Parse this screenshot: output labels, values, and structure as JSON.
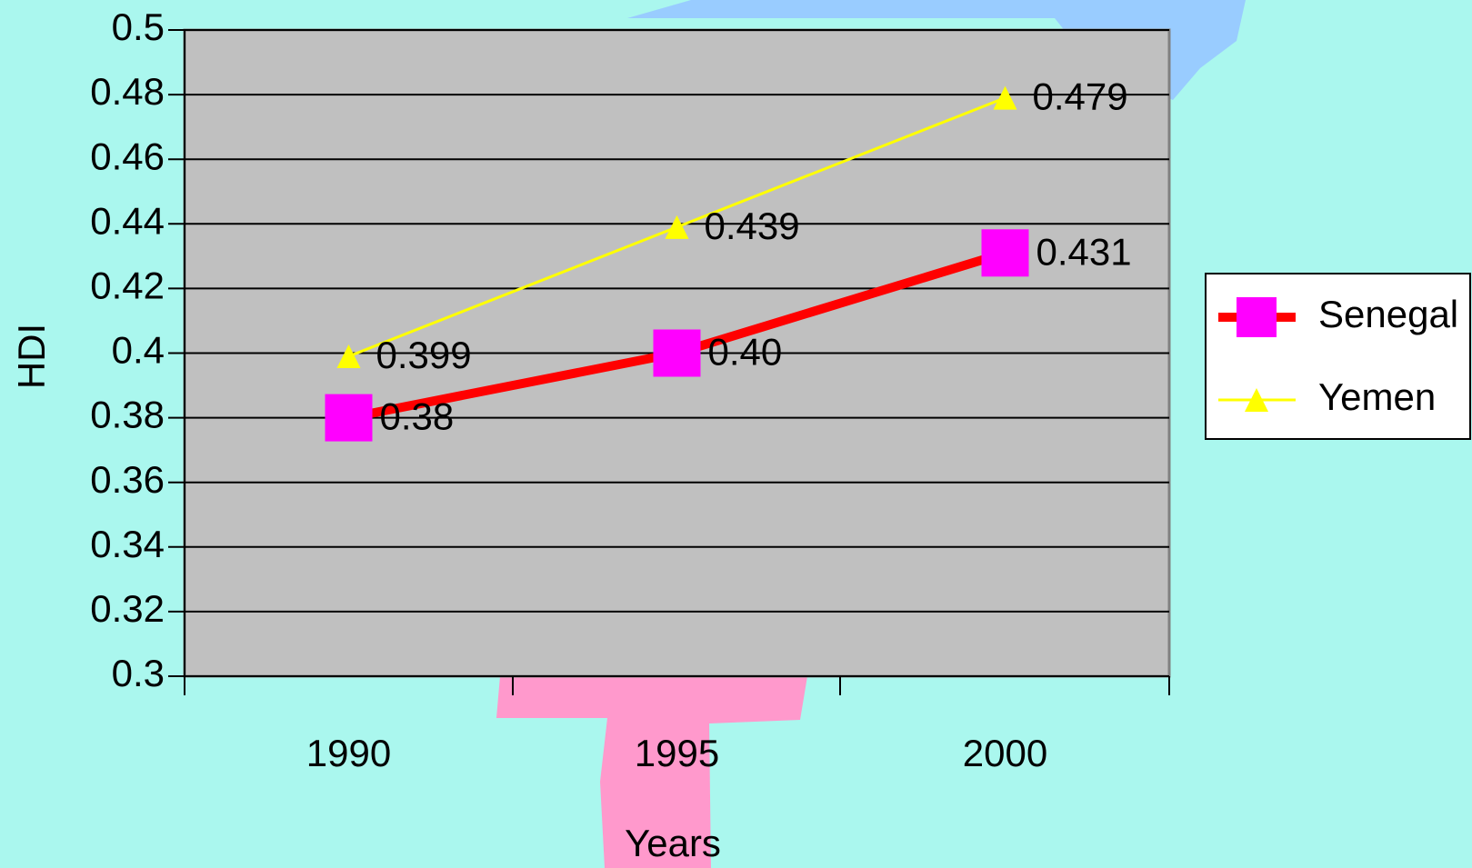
{
  "chart_data": {
    "type": "line",
    "x_label": "Years",
    "y_label": "HDI",
    "categories": [
      "1990",
      "1995",
      "2000"
    ],
    "series": [
      {
        "name": "Senegal",
        "color": "#ff0000",
        "marker_color": "#ff00ff",
        "marker": "square",
        "values": [
          0.38,
          0.4,
          0.431
        ],
        "value_labels": [
          "0.38",
          "0.40",
          "0.431"
        ]
      },
      {
        "name": "Yemen",
        "color": "#ffff00",
        "marker_color": "#ffff00",
        "marker": "triangle",
        "values": [
          0.399,
          0.439,
          0.479
        ]
      }
    ],
    "ylim": [
      0.3,
      0.5
    ],
    "yticks": [
      0.3,
      0.32,
      0.34,
      0.36,
      0.38,
      0.4,
      0.42,
      0.44,
      0.46,
      0.48,
      0.5
    ],
    "grid": true,
    "legend": "right"
  }
}
